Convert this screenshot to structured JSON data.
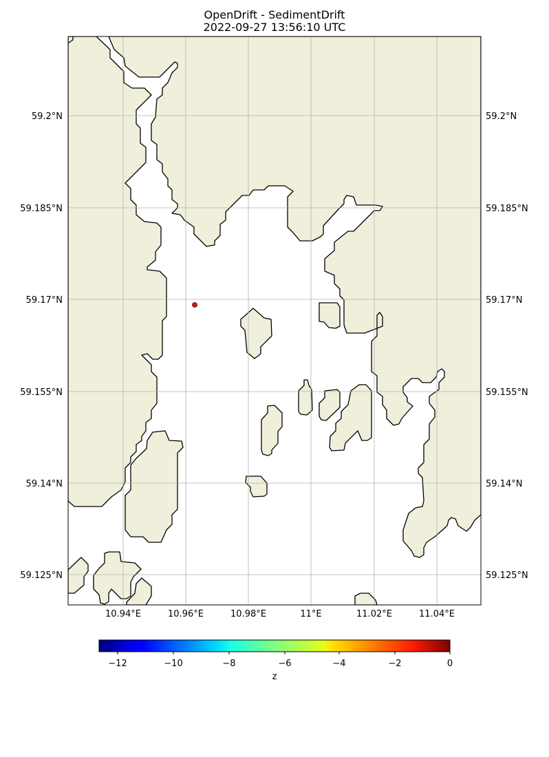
{
  "title": {
    "line1": "OpenDrift - SedimentDrift",
    "line2": "2022-09-27 13:56:10 UTC"
  },
  "map": {
    "land_color": "#efefdb",
    "water_color": "#ffffff",
    "coastline_color": "#000000",
    "grid_color": "#b0b0b0",
    "particle_color": "#b71c1c",
    "lat_ticks": [
      "59.2°N",
      "59.185°N",
      "59.17°N",
      "59.155°N",
      "59.14°N",
      "59.125°N"
    ],
    "lon_ticks": [
      "10.94°E",
      "10.96°E",
      "10.98°E",
      "11°E",
      "11.02°E",
      "11.04°E"
    ],
    "particles": [
      {
        "lon": 10.963,
        "lat": 59.1693,
        "z": -0.1
      }
    ]
  },
  "colorbar": {
    "label": "z",
    "colormap": "jet",
    "range": [
      -12.6,
      0
    ],
    "ticks": [
      "−12",
      "−10",
      "−8",
      "−6",
      "−4",
      "−2",
      "0"
    ]
  }
}
